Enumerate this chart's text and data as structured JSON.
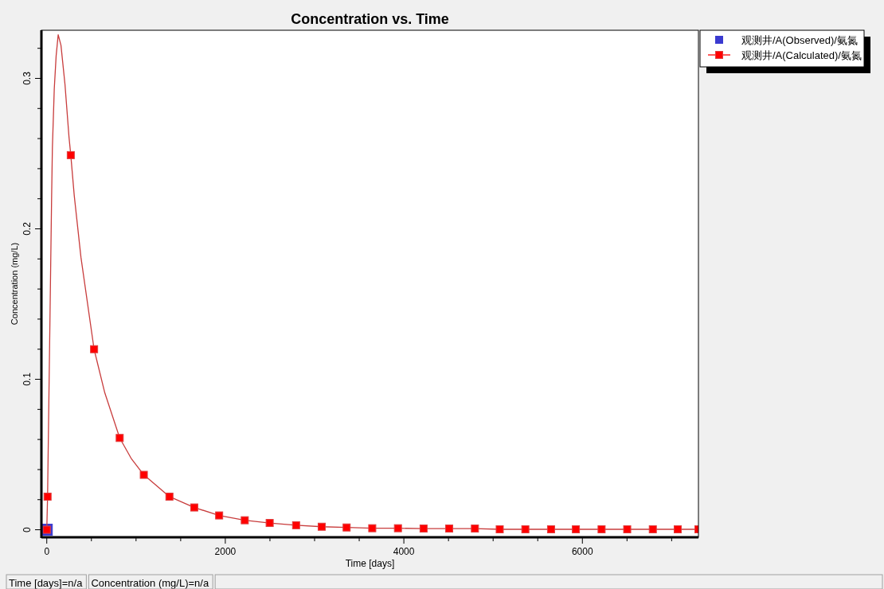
{
  "chart_data": {
    "type": "scatter",
    "title": "Concentration vs. Time",
    "xlabel": "Time  [days]",
    "ylabel": "Concentration (mg/L)",
    "xlim": [
      -60,
      7300
    ],
    "ylim": [
      -0.005,
      0.332
    ],
    "xticks": [
      0,
      {
        "value": 500,
        "label": null
      },
      {
        "value": 1000,
        "label": null
      },
      {
        "value": 1500,
        "label": null
      },
      2000,
      {
        "value": 2500,
        "label": null
      },
      {
        "value": 3000,
        "label": null
      },
      {
        "value": 3500,
        "label": null
      },
      4000,
      {
        "value": 4500,
        "label": null
      },
      {
        "value": 5000,
        "label": null
      },
      {
        "value": 5500,
        "label": null
      },
      6000,
      {
        "value": 6500,
        "label": null
      },
      {
        "value": 7000,
        "label": null
      }
    ],
    "yticks": [
      0,
      {
        "value": 0.02,
        "label": null
      },
      {
        "value": 0.04,
        "label": null
      },
      {
        "value": 0.06,
        "label": null
      },
      {
        "value": 0.08,
        "label": null
      },
      0.1,
      {
        "value": 0.12,
        "label": null
      },
      {
        "value": 0.14,
        "label": null
      },
      {
        "value": 0.16,
        "label": null
      },
      {
        "value": 0.18,
        "label": null
      },
      0.2,
      {
        "value": 0.22,
        "label": null
      },
      {
        "value": 0.24,
        "label": null
      },
      {
        "value": 0.26,
        "label": null
      },
      {
        "value": 0.28,
        "label": null
      },
      0.3,
      {
        "value": 0.32,
        "label": null
      }
    ],
    "grid": false,
    "legend": "top right",
    "marker": "square",
    "series": [
      {
        "name": "观测井/A(Observed)/氨氮",
        "color": "#3a3ad0",
        "x": [
          0
        ],
        "values": [
          0
        ]
      },
      {
        "type": "line",
        "marker": "none",
        "color": "#c83c3c",
        "x": [
          0,
          9,
          54,
          63,
          84,
          105,
          128,
          159,
          204,
          249,
          269,
          308,
          383,
          530,
          650,
          817,
          950,
          1087,
          1374,
          1652,
          1931,
          2218,
          2497,
          2793,
          3080,
          3359,
          3646,
          3934,
          4221,
          4508,
          4796,
          5074,
          5361,
          5649,
          5927,
          6215,
          6502,
          6789,
          7068,
          7300
        ],
        "values": [
          0,
          0.022,
          0.22,
          0.254,
          0.293,
          0.315,
          0.329,
          0.322,
          0.296,
          0.261,
          0.249,
          0.222,
          0.181,
          0.12,
          0.091,
          0.061,
          0.047,
          0.0365,
          0.022,
          0.0148,
          0.0095,
          0.0063,
          0.0045,
          0.003,
          0.002,
          0.0015,
          0.001,
          0.001,
          0.0008,
          0.0008,
          0.0008,
          0.0003,
          0.0003,
          0.0003,
          0.0003,
          0.0003,
          0.0003,
          0.0003,
          0.0003,
          0.0003
        ]
      },
      {
        "name": "观测井/A(Calculated)/氨氮",
        "color": "#ff0000",
        "x": [
          0,
          9,
          269,
          530,
          817,
          1087,
          1374,
          1652,
          1931,
          2218,
          2497,
          2793,
          3080,
          3359,
          3646,
          3934,
          4221,
          4508,
          4796,
          5074,
          5361,
          5649,
          5927,
          6215,
          6502,
          6789,
          7068,
          7300
        ],
        "values": [
          0,
          0.022,
          0.249,
          0.12,
          0.061,
          0.0365,
          0.022,
          0.0148,
          0.0095,
          0.0063,
          0.0045,
          0.003,
          0.002,
          0.0015,
          0.001,
          0.001,
          0.0008,
          0.0008,
          0.0008,
          0.0003,
          0.0003,
          0.0003,
          0.0003,
          0.0003,
          0.0003,
          0.0003,
          0.0003,
          0.0003
        ]
      }
    ],
    "annotations": [
      "Time  [days]=n/a",
      "Concentration (mg/L)=n/a"
    ]
  }
}
